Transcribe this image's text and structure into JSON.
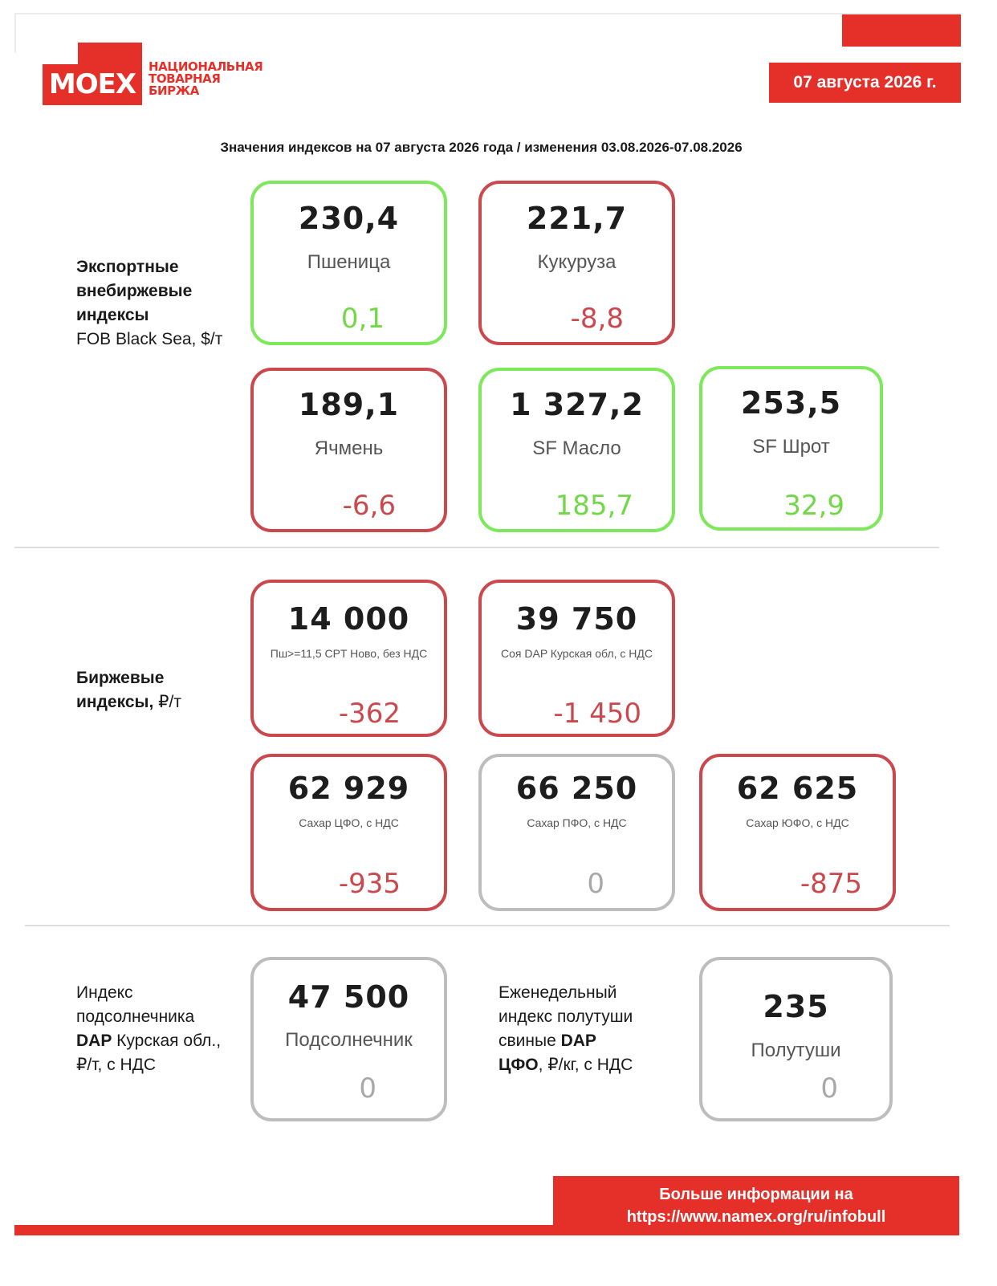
{
  "logo": {
    "mark": "MOEX",
    "line1": "НАЦИОНАЛЬНАЯ",
    "line2": "ТОВАРНАЯ",
    "line3": "БИРЖА",
    "color": "#e5302a"
  },
  "date_badge": "07 августа 2026 г.",
  "headline": "Значения индексов на 07 августа 2026 года / изменения 03.08.2026-07.08.2026",
  "sections": {
    "export": {
      "label_bold": [
        "Экспортные",
        "внебиржевые",
        "индексы"
      ],
      "label_sub": "FOB Black Sea, $/т"
    },
    "exchange": {
      "label_bold_1": "Биржевые",
      "label_bold_2": "индексы,",
      "label_unit": " ₽/т"
    },
    "sunflower": {
      "line1": "Индекс",
      "line2": "подсолнечника",
      "line3_bold": "DAP",
      "line3_rest": " Курская обл.,",
      "line4": "₽/т, с НДС"
    },
    "pork": {
      "line1": "Еженедельный",
      "line2": "индекс полутуши",
      "line3_text": "свиные ",
      "line3_bold": "DAP",
      "line4_bold": "ЦФО",
      "line4_rest": ", ₽/кг, с НДС"
    }
  },
  "cards": {
    "wheat": {
      "value": "230,4",
      "name": "Пшеница",
      "change": "0,1",
      "trend": "up"
    },
    "corn": {
      "value": "221,7",
      "name": "Кукуруза",
      "change": "-8,8",
      "trend": "down"
    },
    "barley": {
      "value": "189,1",
      "name": "Ячмень",
      "change": "-6,6",
      "trend": "down"
    },
    "sf_oil": {
      "value": "1 327,2",
      "name": "SF Масло",
      "change": "185,7",
      "trend": "up"
    },
    "sf_meal": {
      "value": "253,5",
      "name": "SF Шрот",
      "change": "32,9",
      "trend": "up"
    },
    "wheat_exch": {
      "value": "14 000",
      "name": "Пш>=11,5 CPT Ново, без НДС",
      "change": "-362",
      "trend": "down"
    },
    "soy": {
      "value": "39 750",
      "name": "Соя DAP Курская обл, с НДС",
      "change": "-1 450",
      "trend": "down"
    },
    "sugar_cfo": {
      "value": "62 929",
      "name": "Сахар ЦФО, с НДС",
      "change": "-935",
      "trend": "down"
    },
    "sugar_pfo": {
      "value": "66 250",
      "name": "Сахар ПФО, с НДС",
      "change": "0",
      "trend": "flat"
    },
    "sugar_yufo": {
      "value": "62 625",
      "name": "Сахар ЮФО, с НДС",
      "change": "-875",
      "trend": "down"
    },
    "sunflower": {
      "value": "47 500",
      "name": "Подсолнечник",
      "change": "0",
      "trend": "flat"
    },
    "pork": {
      "value": "235",
      "name": "Полутуши",
      "change": "0",
      "trend": "flat"
    }
  },
  "colors": {
    "up": "#7ce85a",
    "down": "#c9494f",
    "flat": "#bdbdbd",
    "brand": "#e5302a"
  },
  "footer": {
    "line1": "Больше информации на",
    "line2": "https://www.namex.org/ru/infobull"
  }
}
